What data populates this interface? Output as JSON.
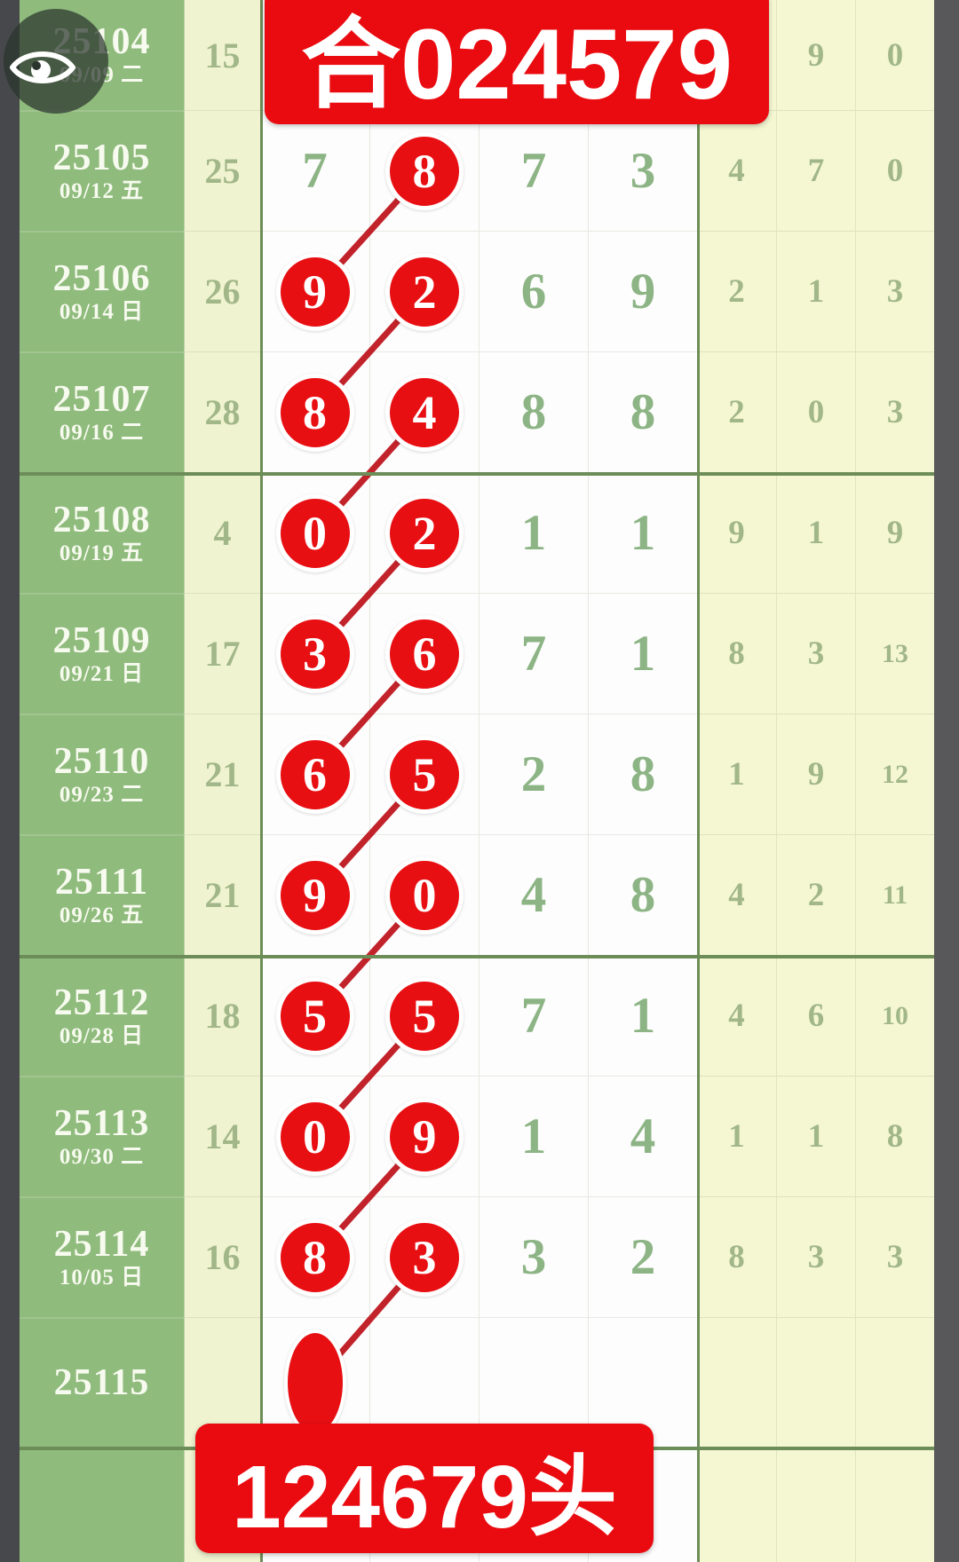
{
  "banners": {
    "top_label": "合024579",
    "bottom_label": "124679头"
  },
  "accent_colors": {
    "red": "#e80f13",
    "green_column": "#8fbb7d",
    "pale_yellow": "#f5f7d3",
    "digit_green": "#8cb484"
  },
  "icons": {
    "eye": "visibility-toggle"
  },
  "rows": [
    {
      "issue": "25104",
      "date": "09/09 二",
      "span": "15",
      "d": [
        "",
        "",
        "",
        ""
      ],
      "c": [
        0,
        0,
        0,
        0
      ],
      "right": [
        "",
        "9",
        "0"
      ]
    },
    {
      "issue": "25105",
      "date": "09/12 五",
      "span": "25",
      "d": [
        "7",
        "8",
        "7",
        "3"
      ],
      "c": [
        0,
        1,
        0,
        0
      ],
      "right": [
        "4",
        "7",
        "0"
      ]
    },
    {
      "issue": "25106",
      "date": "09/14 日",
      "span": "26",
      "d": [
        "9",
        "2",
        "6",
        "9"
      ],
      "c": [
        1,
        1,
        0,
        0
      ],
      "right": [
        "2",
        "1",
        "3"
      ]
    },
    {
      "issue": "25107",
      "date": "09/16 二",
      "span": "28",
      "d": [
        "8",
        "4",
        "8",
        "8"
      ],
      "c": [
        1,
        1,
        0,
        0
      ],
      "right": [
        "2",
        "0",
        "3"
      ]
    },
    {
      "issue": "25108",
      "date": "09/19 五",
      "span": "4",
      "d": [
        "0",
        "2",
        "1",
        "1"
      ],
      "c": [
        1,
        1,
        0,
        0
      ],
      "right": [
        "9",
        "1",
        "9"
      ]
    },
    {
      "issue": "25109",
      "date": "09/21 日",
      "span": "17",
      "d": [
        "3",
        "6",
        "7",
        "1"
      ],
      "c": [
        1,
        1,
        0,
        0
      ],
      "right": [
        "8",
        "3",
        "13"
      ]
    },
    {
      "issue": "25110",
      "date": "09/23 二",
      "span": "21",
      "d": [
        "6",
        "5",
        "2",
        "8"
      ],
      "c": [
        1,
        1,
        0,
        0
      ],
      "right": [
        "1",
        "9",
        "12"
      ]
    },
    {
      "issue": "25111",
      "date": "09/26 五",
      "span": "21",
      "d": [
        "9",
        "0",
        "4",
        "8"
      ],
      "c": [
        1,
        1,
        0,
        0
      ],
      "right": [
        "4",
        "2",
        "11"
      ]
    },
    {
      "issue": "25112",
      "date": "09/28 日",
      "span": "18",
      "d": [
        "5",
        "5",
        "7",
        "1"
      ],
      "c": [
        1,
        1,
        0,
        0
      ],
      "right": [
        "4",
        "6",
        "10"
      ]
    },
    {
      "issue": "25113",
      "date": "09/30 二",
      "span": "14",
      "d": [
        "0",
        "9",
        "1",
        "4"
      ],
      "c": [
        1,
        1,
        0,
        0
      ],
      "right": [
        "1",
        "1",
        "8"
      ]
    },
    {
      "issue": "25114",
      "date": "10/05 日",
      "span": "16",
      "d": [
        "8",
        "3",
        "3",
        "2"
      ],
      "c": [
        1,
        1,
        0,
        0
      ],
      "right": [
        "8",
        "3",
        "3"
      ]
    },
    {
      "issue": "25115",
      "date": "",
      "span": "",
      "d": [
        "",
        "",
        "",
        ""
      ],
      "c": [
        0,
        0,
        0,
        0
      ],
      "right": [
        "",
        "",
        ""
      ],
      "marker": true
    }
  ]
}
